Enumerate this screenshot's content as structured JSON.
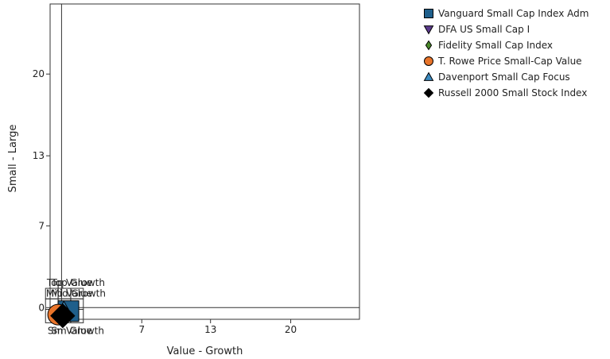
{
  "chart_data": {
    "type": "scatter",
    "title": "",
    "xlabel": "Value - Growth",
    "ylabel": "Small - Large",
    "xlim": [
      -1,
      26
    ],
    "ylim": [
      -1,
      26
    ],
    "x_ticks": [
      0,
      7,
      13,
      20
    ],
    "x_tick_labels": [
      "0",
      "7",
      "13",
      "20"
    ],
    "y_ticks": [
      0,
      7,
      13,
      20
    ],
    "y_tick_labels": [
      "0",
      "7",
      "13",
      "20"
    ],
    "grid": false,
    "legend_position": "top-right",
    "style_box_labels": [
      "Top Value",
      "Top Growth",
      "Mid Value",
      "Mid Growth",
      "Sm Value",
      "Sm Growth"
    ],
    "series": [
      {
        "name": "Vanguard Small Cap Index Adm",
        "marker": "square",
        "color": "#1f5f8b",
        "x": 0.6,
        "y": -0.3
      },
      {
        "name": "DFA US Small Cap I",
        "marker": "triangle-down",
        "color": "#5b3a8c",
        "x": -0.2,
        "y": -0.7
      },
      {
        "name": "Fidelity Small Cap Index",
        "marker": "diamond-small",
        "color": "#4a8a2a",
        "x": 0.0,
        "y": -0.6
      },
      {
        "name": "T. Rowe Price Small-Cap Value",
        "marker": "circle",
        "color": "#e8742a",
        "x": -0.3,
        "y": -0.6
      },
      {
        "name": "Davenport Small Cap Focus",
        "marker": "triangle-up",
        "color": "#3b8ac0",
        "x": 0.2,
        "y": -0.2
      },
      {
        "name": "Russell 2000 Small Stock Index",
        "marker": "diamond",
        "color": "#000000",
        "x": 0.1,
        "y": -0.7
      }
    ]
  }
}
